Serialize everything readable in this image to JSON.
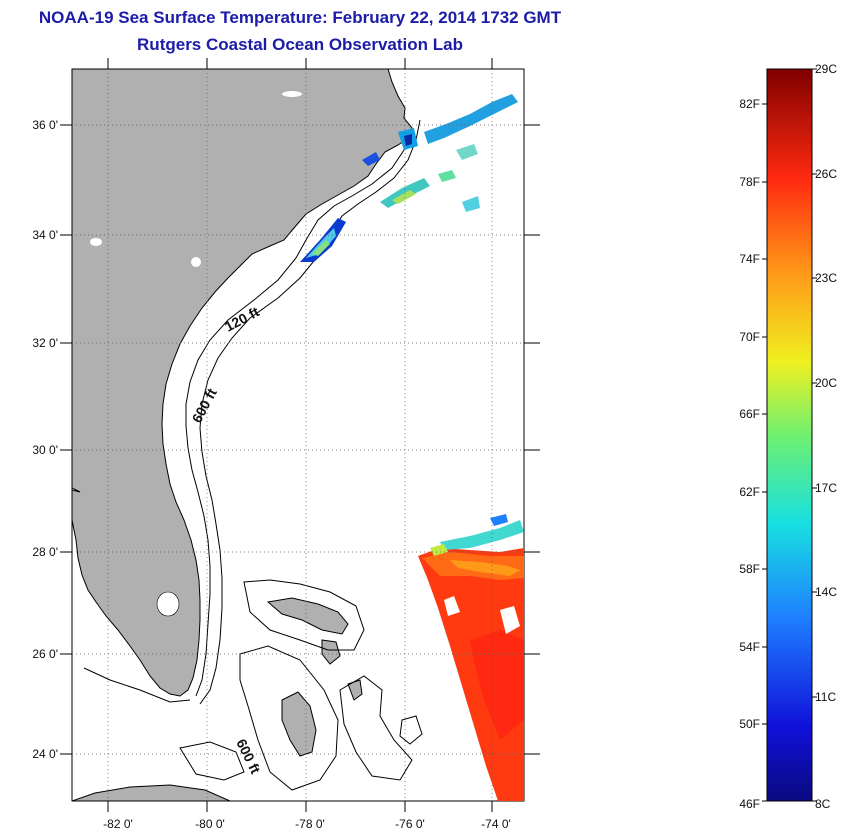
{
  "header": {
    "title": "NOAA-19 Sea Surface Temperature:  February 22, 2014 1732 GMT",
    "subtitle": "Rutgers Coastal Ocean Observation Lab"
  },
  "map": {
    "lat_labels": [
      "36 0'",
      "34 0'",
      "32 0'",
      "30 0'",
      "28 0'",
      "26 0'",
      "24 0'"
    ],
    "lon_labels": [
      "-82 0'",
      "-80 0'",
      "-78 0'",
      "-76 0'",
      "-74 0'"
    ],
    "contour_labels": {
      "shelf_120": "120 ft",
      "slope_600_north": "600 ft",
      "slope_600_south": "600 ft"
    },
    "colors": {
      "land": "#b0b0b0",
      "water": "#ffffff",
      "coast": "#000000"
    }
  },
  "colorbar": {
    "fahrenheit_labels": [
      "82F",
      "78F",
      "74F",
      "70F",
      "66F",
      "62F",
      "58F",
      "54F",
      "50F",
      "46F"
    ],
    "celsius_labels": [
      "29C",
      "26C",
      "23C",
      "20C",
      "17C",
      "14C",
      "11C",
      "8C"
    ]
  }
}
